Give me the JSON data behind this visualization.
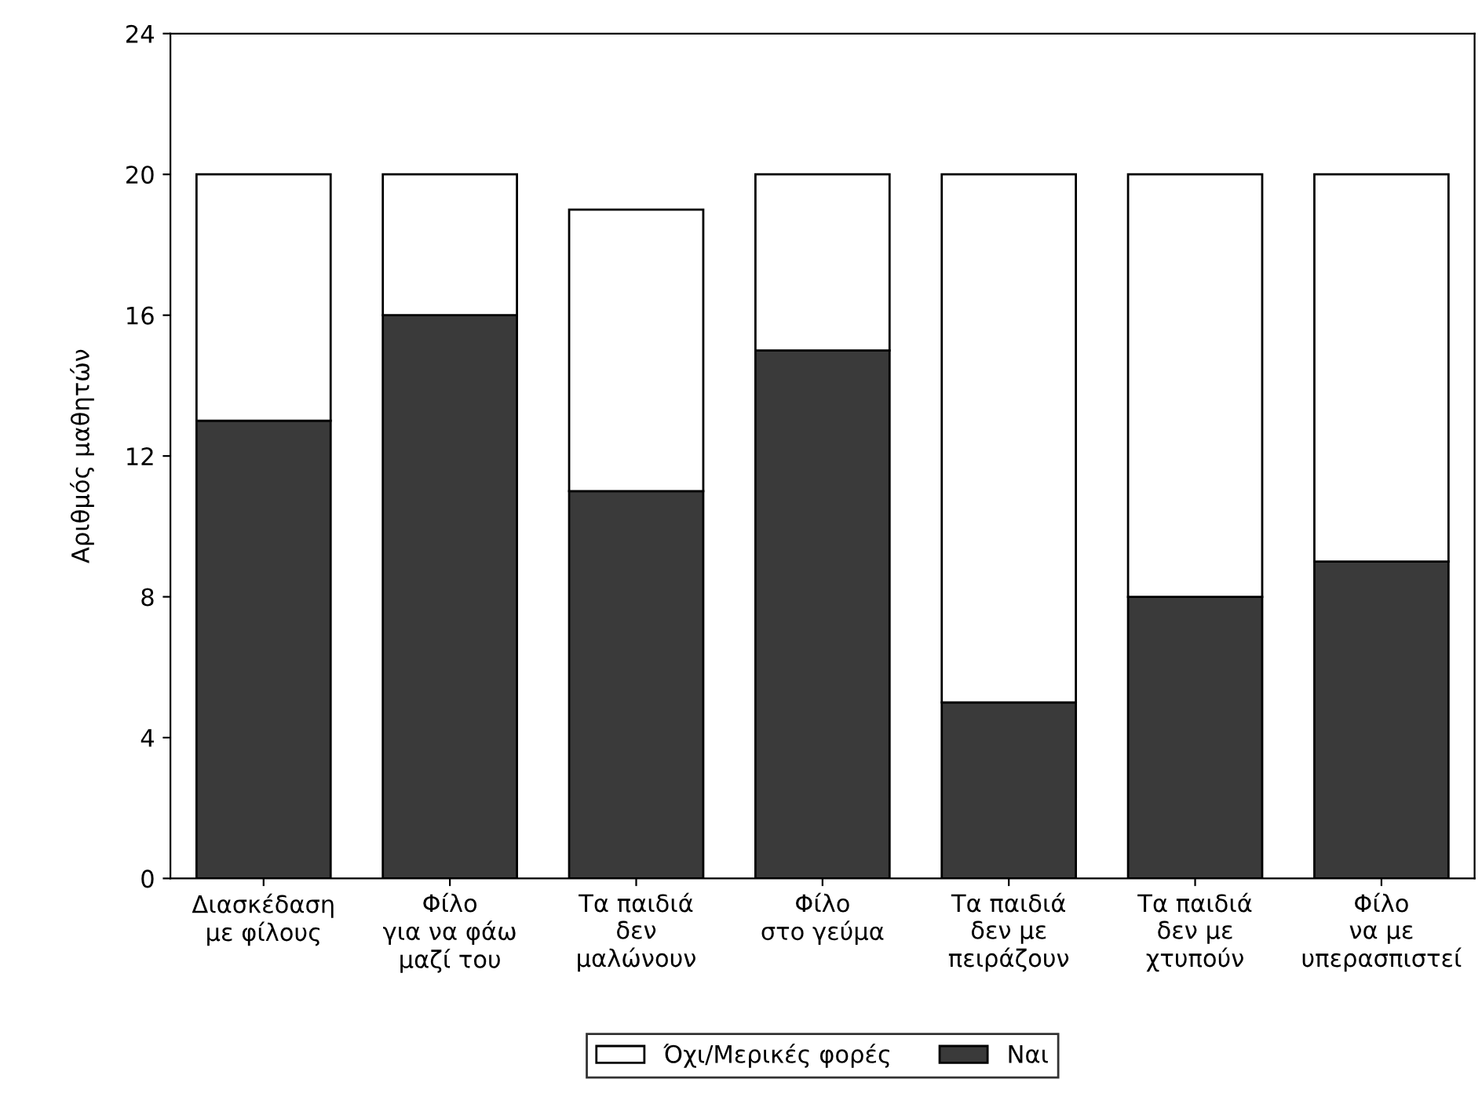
{
  "chart_data": {
    "type": "bar",
    "stacked": true,
    "ylabel": "Αριθμός μαθητών",
    "categories": [
      "Διασκέδαση\nμε φίλους",
      "Φίλο\nγια να φάω\nμαζί του",
      "Τα παιδιά\nδεν\nμαλώνουν",
      "Φίλο\nστο γεύμα",
      "Τα παιδιά\nδεν με\nπειράζουν",
      "Τα παιδιά\nδεν με\nχτυπούν",
      "Φίλο\nνα με\nυπερασπιστεί"
    ],
    "series": [
      {
        "name": "Ναι",
        "color": "#3a3a3a",
        "values": [
          13,
          16,
          11,
          15,
          5,
          8,
          9
        ]
      },
      {
        "name": "Όχι/Μερικές φορές",
        "color": "#ffffff",
        "values": [
          7,
          4,
          8,
          5,
          15,
          12,
          11
        ]
      }
    ],
    "ylim": [
      0,
      24
    ],
    "yticks": [
      0,
      4,
      8,
      12,
      16,
      20,
      24
    ],
    "grid": false,
    "legend": "bottom"
  }
}
